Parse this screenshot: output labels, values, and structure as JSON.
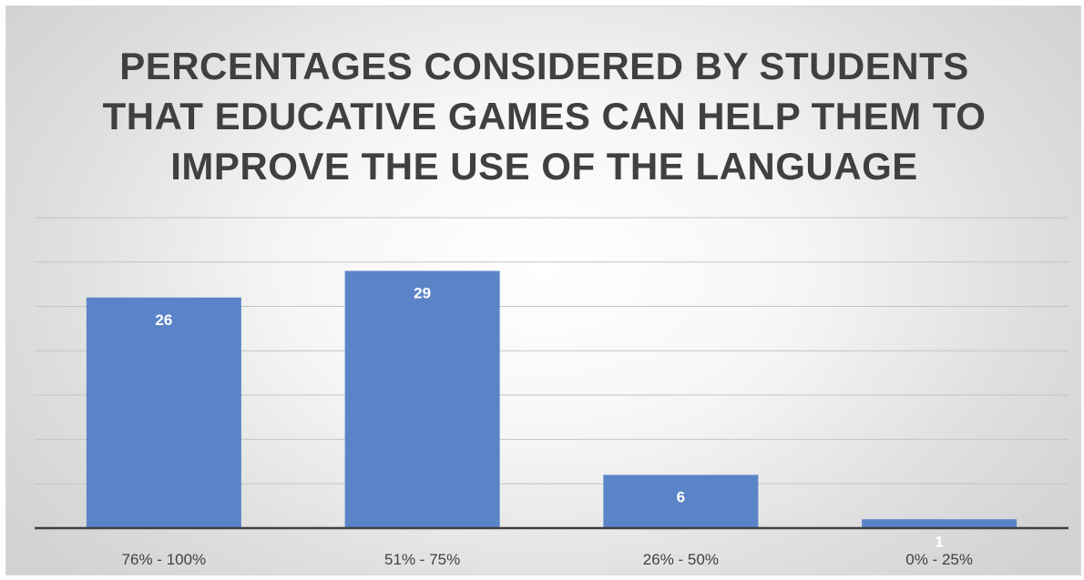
{
  "chart_data": {
    "type": "bar",
    "title_lines": [
      "PERCENTAGES CONSIDERED BY STUDENTS",
      "THAT EDUCATIVE GAMES CAN HELP THEM TO",
      "IMPROVE THE USE OF THE LANGUAGE"
    ],
    "categories": [
      "76% - 100%",
      "51% - 75%",
      "26% - 50%",
      "0% - 25%"
    ],
    "values": [
      26,
      29,
      6,
      1
    ],
    "ylim": [
      0,
      35
    ],
    "gridline_step": 5,
    "grid": true,
    "legend": "none",
    "bar_color": "#5b84c8",
    "data_label_color": "#ffffff"
  }
}
